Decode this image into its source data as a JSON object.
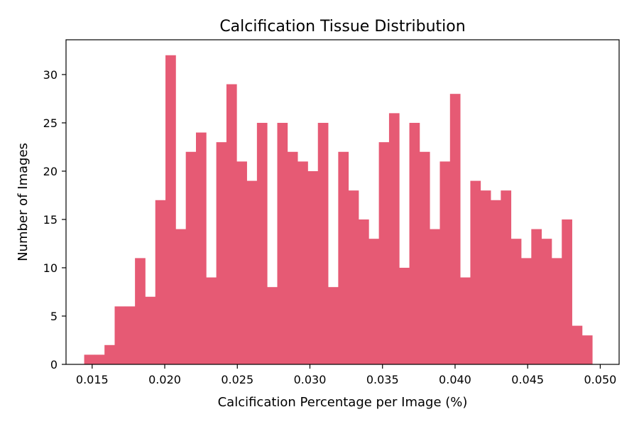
{
  "chart_data": {
    "type": "bar",
    "title": "Calcification Tissue Distribution",
    "xlabel": "Calcification Percentage per Image (%)",
    "ylabel": "Number of Images",
    "xlim": [
      0.0132,
      0.0513
    ],
    "ylim": [
      0,
      33.6
    ],
    "grid": false,
    "color": "#e65a74",
    "bin_start": 0.01445,
    "bin_width": 0.0007,
    "values": [
      1,
      1,
      2,
      6,
      6,
      11,
      7,
      17,
      32,
      14,
      22,
      24,
      9,
      23,
      29,
      21,
      19,
      25,
      8,
      25,
      22,
      21,
      20,
      25,
      8,
      22,
      18,
      15,
      13,
      23,
      26,
      10,
      25,
      22,
      14,
      21,
      28,
      9,
      19,
      18,
      17,
      18,
      13,
      11,
      14,
      13,
      11,
      15,
      4,
      3
    ],
    "x_ticks": [
      {
        "value": 0.015,
        "label": "0.015"
      },
      {
        "value": 0.02,
        "label": "0.020"
      },
      {
        "value": 0.025,
        "label": "0.025"
      },
      {
        "value": 0.03,
        "label": "0.030"
      },
      {
        "value": 0.035,
        "label": "0.035"
      },
      {
        "value": 0.04,
        "label": "0.040"
      },
      {
        "value": 0.045,
        "label": "0.045"
      },
      {
        "value": 0.05,
        "label": "0.050"
      }
    ],
    "y_ticks": [
      {
        "value": 0,
        "label": "0"
      },
      {
        "value": 5,
        "label": "5"
      },
      {
        "value": 10,
        "label": "10"
      },
      {
        "value": 15,
        "label": "15"
      },
      {
        "value": 20,
        "label": "20"
      },
      {
        "value": 25,
        "label": "25"
      },
      {
        "value": 30,
        "label": "30"
      }
    ]
  }
}
